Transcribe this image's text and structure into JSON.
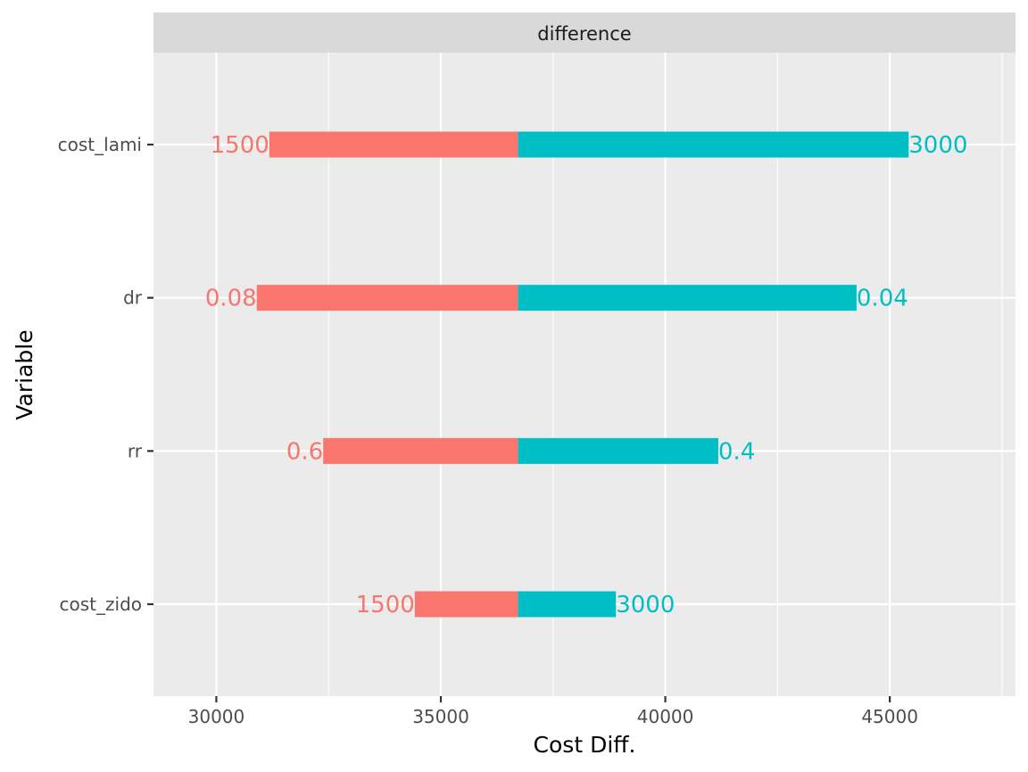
{
  "chart_data": {
    "type": "bar",
    "orientation": "horizontal",
    "facet_label": "difference",
    "xlabel": "Cost Diff.",
    "ylabel": "Variable",
    "xlim": [
      28600,
      47800
    ],
    "xticks": [
      30000,
      35000,
      40000,
      45000
    ],
    "xtick_labels": [
      "30000",
      "35000",
      "40000",
      "45000"
    ],
    "base_value": 36720,
    "grid": true,
    "categories": [
      "cost_lami",
      "dr",
      "rr",
      "cost_zido"
    ],
    "series": [
      {
        "color": "#F8766D",
        "values": [
          31180,
          30900,
          32380,
          34420
        ],
        "labels": [
          "1500",
          "0.08",
          "0.6",
          "1500"
        ]
      },
      {
        "color": "#00BFC4",
        "values": [
          45420,
          44260,
          41180,
          38900
        ],
        "labels": [
          "3000",
          "0.04",
          "0.4",
          "3000"
        ]
      }
    ]
  }
}
